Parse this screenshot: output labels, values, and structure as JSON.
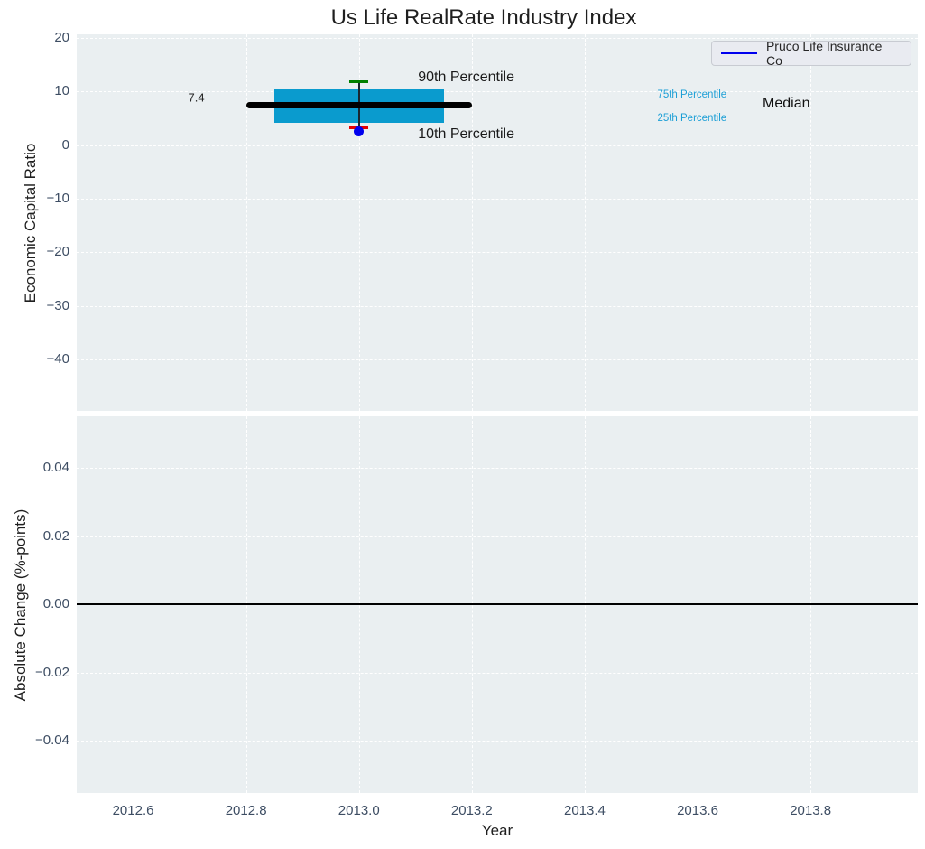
{
  "title": "Us Life RealRate Industry Index",
  "legend": {
    "label": "Pruco Life Insurance Co",
    "line_color": "#0000ee"
  },
  "colors": {
    "figure_bg": "#ffffff",
    "axes_bg": "#eaeff1",
    "grid": "#ffffff",
    "tick_label": "#3d4d63",
    "text": "#1f1f1f",
    "box_fill": "#0a9bce",
    "median_line": "#000000",
    "whisker_line": "#1a2630",
    "p90_cap": "#008000",
    "p10_cap": "#e60000",
    "company_marker": "#0000ee",
    "cyan_annotation": "#1c9fd6",
    "zero_line": "#000000"
  },
  "chart_data": [
    {
      "type": "boxplot",
      "ylabel": "Economic Capital Ratio",
      "xlabel": "",
      "xlim": [
        2012.5,
        2013.99
      ],
      "ylim": [
        -49.6,
        20.7
      ],
      "xticks": [
        2012.6,
        2012.8,
        2013.0,
        2013.2,
        2013.4,
        2013.6,
        2013.8
      ],
      "xtick_labels": [
        "2012.6",
        "2012.8",
        "2013.0",
        "2013.2",
        "2013.4",
        "2013.6",
        "2013.8"
      ],
      "show_xtick_labels": false,
      "yticks": [
        20,
        10,
        0,
        -10,
        -20,
        -30,
        -40
      ],
      "ytick_labels": [
        "20",
        "10",
        "0",
        "−10",
        "−20",
        "−30",
        "−40"
      ],
      "grid": true,
      "box": {
        "x_center": 2013.0,
        "box_left": 2012.85,
        "box_right": 2013.15,
        "median_left": 2012.8,
        "median_right": 2013.2,
        "cap_halfwidth": 0.0168,
        "p10": 3.3,
        "p25": 4.1,
        "median": 7.4,
        "p75": 10.5,
        "p90": 11.8
      },
      "company_point": {
        "name": "Pruco Life Insurance Co",
        "x": 2013.0,
        "y": 2.6
      },
      "annotations": [
        {
          "text": "90th Percentile",
          "x": 2013.19,
          "y": 12.6,
          "style": "lg"
        },
        {
          "text": "10th Percentile",
          "x": 2013.19,
          "y": 1.95,
          "style": "lg"
        },
        {
          "text": "75th Percentile",
          "x": 2013.59,
          "y": 9.4,
          "style": "cyan"
        },
        {
          "text": "25th Percentile",
          "x": 2013.59,
          "y": 5.0,
          "style": "cyan"
        },
        {
          "text": "Median",
          "x": 2013.757,
          "y": 7.7,
          "style": "md"
        },
        {
          "text": "7.4",
          "x": 2012.712,
          "y": 8.95,
          "style": "val"
        }
      ]
    },
    {
      "type": "line",
      "ylabel": "Absolute Change (%-points)",
      "xlabel": "Year",
      "xlim": [
        2012.5,
        2013.99
      ],
      "ylim": [
        -0.0553,
        0.0551
      ],
      "xticks": [
        2012.6,
        2012.8,
        2013.0,
        2013.2,
        2013.4,
        2013.6,
        2013.8
      ],
      "xtick_labels": [
        "2012.6",
        "2012.8",
        "2013.0",
        "2013.2",
        "2013.4",
        "2013.6",
        "2013.8"
      ],
      "show_xtick_labels": true,
      "yticks": [
        0.04,
        0.02,
        0.0,
        -0.02,
        -0.04
      ],
      "ytick_labels": [
        "0.04",
        "0.02",
        "0.00",
        "−0.02",
        "−0.04"
      ],
      "grid": true,
      "zero_line": 0.0,
      "series": [
        {
          "name": "Pruco Life Insurance Co",
          "x": [],
          "y": []
        }
      ]
    }
  ]
}
